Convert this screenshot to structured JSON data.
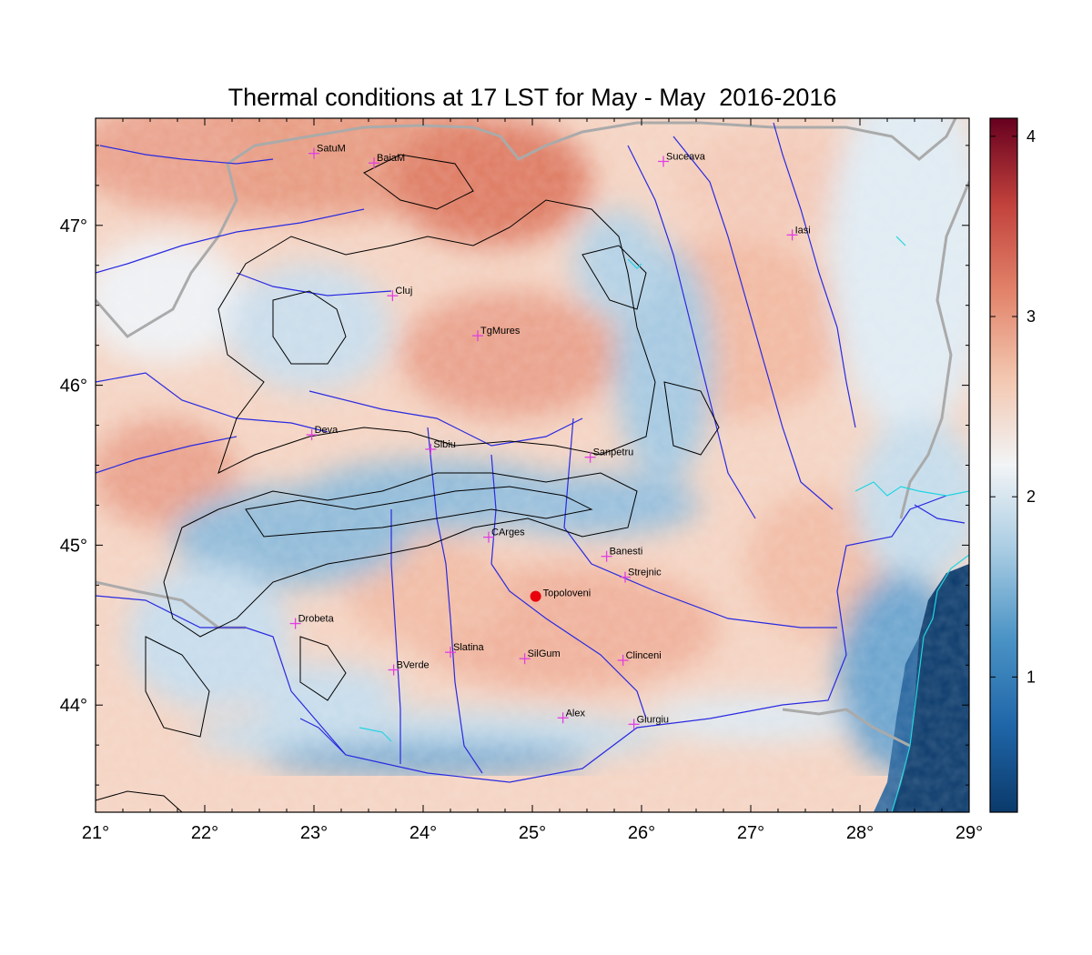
{
  "title": "Thermal conditions at 17 LST for May - May  2016-2016",
  "map": {
    "lon_range": [
      21,
      29
    ],
    "lat_range": [
      43.33,
      47.67
    ],
    "lon_ticks": [
      21,
      22,
      23,
      24,
      25,
      26,
      27,
      28,
      29
    ],
    "lat_ticks": [
      44,
      45,
      46,
      47
    ],
    "lon_tick_labels": [
      "21°",
      "22°",
      "23°",
      "24°",
      "25°",
      "26°",
      "27°",
      "28°",
      "29°"
    ],
    "lat_tick_labels": [
      "44°",
      "45°",
      "46°",
      "47°"
    ]
  },
  "colorbar": {
    "range": [
      0.25,
      4.1
    ],
    "ticks": [
      1,
      2,
      3,
      4
    ],
    "tick_labels": [
      "1",
      "2",
      "3",
      "4"
    ],
    "colors": [
      "#0b3a6b",
      "#1f66a8",
      "#4a93c5",
      "#a7cbe2",
      "#f2f4f6",
      "#f3c7b0",
      "#e2836a",
      "#c2423c",
      "#67001f"
    ]
  },
  "cities": [
    {
      "name": "SatuM",
      "lon": 23.0,
      "lat": 47.45
    },
    {
      "name": "BaiaM",
      "lon": 23.55,
      "lat": 47.39
    },
    {
      "name": "Suceava",
      "lon": 26.2,
      "lat": 47.4
    },
    {
      "name": "Iasi",
      "lon": 27.38,
      "lat": 46.94
    },
    {
      "name": "Cluj",
      "lon": 23.72,
      "lat": 46.56
    },
    {
      "name": "TgMures",
      "lon": 24.5,
      "lat": 46.31
    },
    {
      "name": "Deva",
      "lon": 22.98,
      "lat": 45.69
    },
    {
      "name": "Sibiu",
      "lon": 24.07,
      "lat": 45.6
    },
    {
      "name": "Sanpetru",
      "lon": 25.53,
      "lat": 45.55
    },
    {
      "name": "CArges",
      "lon": 24.6,
      "lat": 45.05
    },
    {
      "name": "Banesti",
      "lon": 25.68,
      "lat": 44.93
    },
    {
      "name": "Strejnic",
      "lon": 25.85,
      "lat": 44.8
    },
    {
      "name": "Drobeta",
      "lon": 22.83,
      "lat": 44.51
    },
    {
      "name": "Slatina",
      "lon": 24.25,
      "lat": 44.33
    },
    {
      "name": "SilGum",
      "lon": 24.93,
      "lat": 44.29
    },
    {
      "name": "Clinceni",
      "lon": 25.83,
      "lat": 44.28
    },
    {
      "name": "BVerde",
      "lon": 23.73,
      "lat": 44.22
    },
    {
      "name": "Alex",
      "lon": 25.28,
      "lat": 43.92
    },
    {
      "name": "Giurgiu",
      "lon": 25.93,
      "lat": 43.88
    }
  ],
  "highlight_site": {
    "name": "Topoloveni",
    "lon": 25.03,
    "lat": 44.68,
    "color": "#e8000b"
  },
  "colors": {
    "city_marker": "#e040e0",
    "rivers": "#2a2ae0",
    "borders": "#aaaaaa",
    "contours": "#000000",
    "coast_lakes": "#22d4e0"
  }
}
